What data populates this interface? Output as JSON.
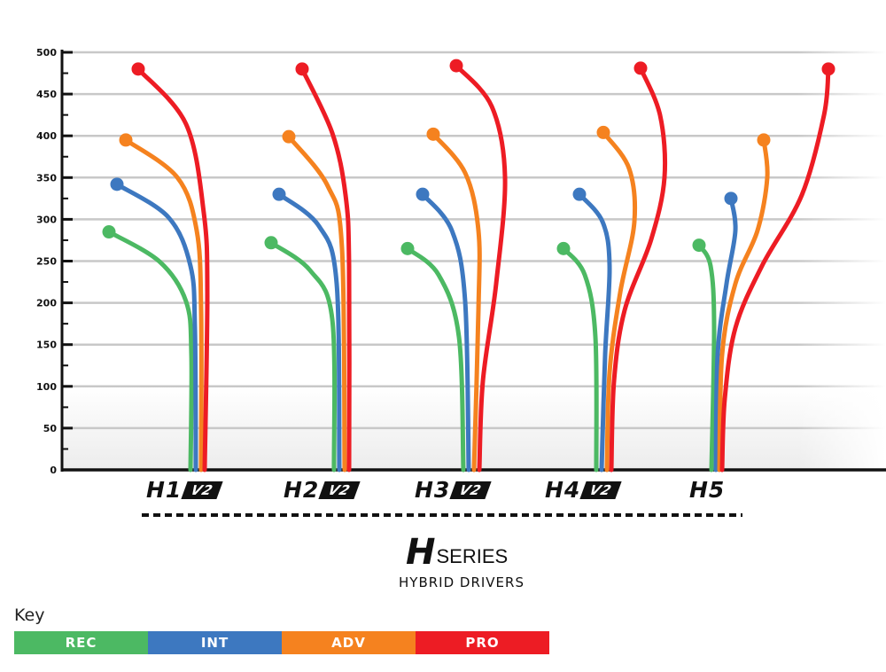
{
  "chart_data": {
    "type": "line",
    "title": "",
    "xlabel": "",
    "ylabel": "",
    "ylim": [
      0,
      500
    ],
    "yticks": [
      0,
      50,
      100,
      150,
      200,
      250,
      300,
      350,
      400,
      450,
      500
    ],
    "grid": true,
    "categories": [
      "H1",
      "H2",
      "H3",
      "H4",
      "H5"
    ],
    "category_badges": [
      "V2",
      "V2",
      "V2",
      "V2",
      ""
    ],
    "series": [
      {
        "name": "REC",
        "color": "#4cb963",
        "values": [
          285,
          272,
          265,
          265,
          269
        ]
      },
      {
        "name": "INT",
        "color": "#3d78c0",
        "values": [
          342,
          330,
          330,
          330,
          325
        ]
      },
      {
        "name": "ADV",
        "color": "#f5821f",
        "values": [
          395,
          399,
          402,
          404,
          395
        ]
      },
      {
        "name": "PRO",
        "color": "#ed1c24",
        "values": [
          480,
          480,
          484,
          481,
          480
        ]
      }
    ],
    "legend_placement": "bottom-left"
  },
  "branding": {
    "logo_letter": "H",
    "logo_word": "SERIES",
    "subtitle": "HYBRID DRIVERS"
  },
  "key": {
    "title": "Key"
  }
}
